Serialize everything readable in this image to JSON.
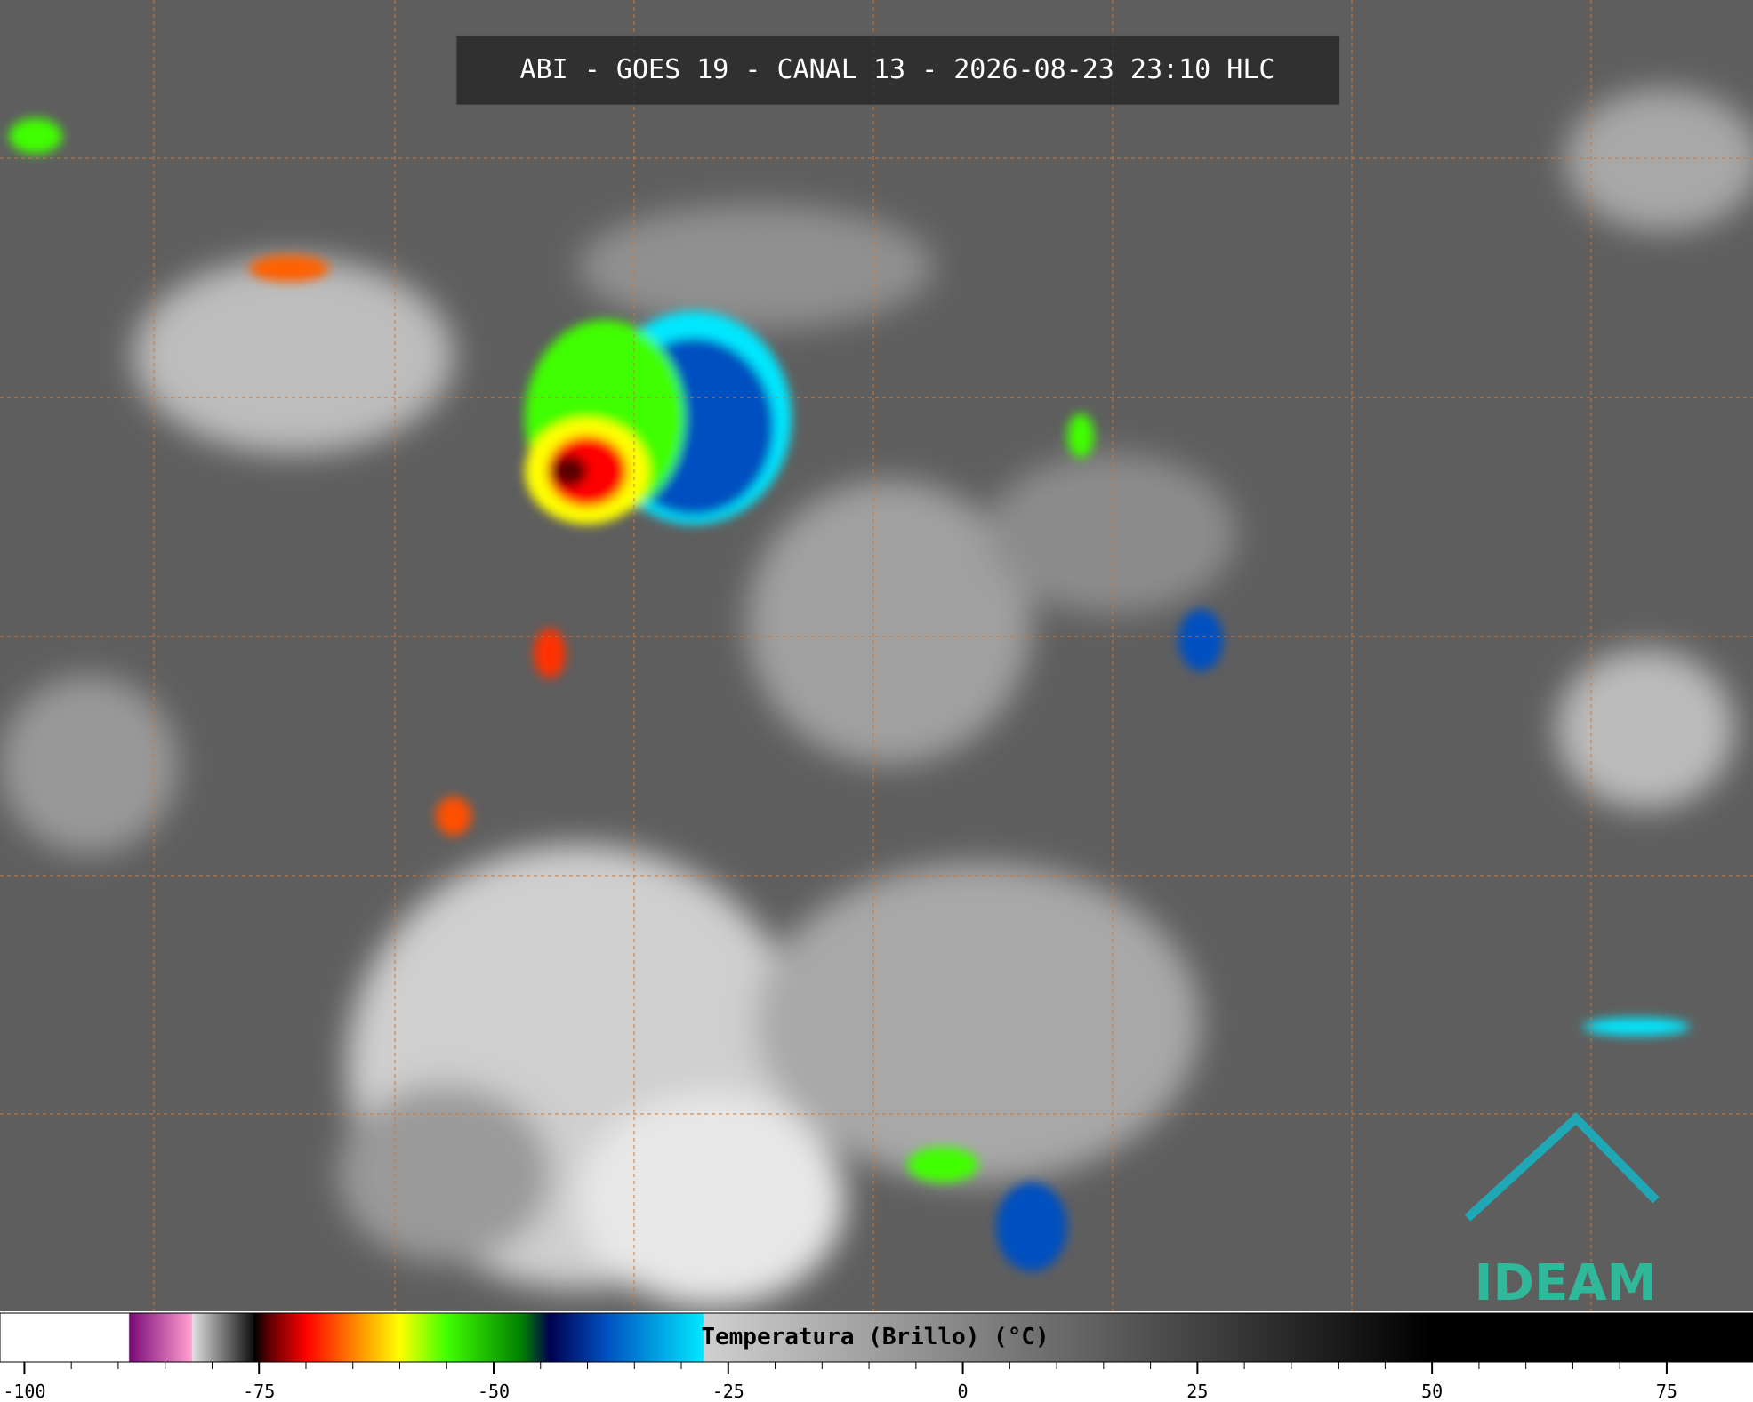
{
  "title": "ABI - GOES 19 - CANAL 13 - 2026-08-23 23:10 HLC",
  "logo": "IDEAM",
  "colorbar": {
    "label": "Temperatura (Brillo) (°C)",
    "lim": [
      -102.6,
      84.2
    ],
    "ticks": [
      -100,
      -75,
      -50,
      -25,
      0,
      25,
      50,
      75
    ],
    "stops": [
      {
        "value": -102.6,
        "color": "#ffffff"
      },
      {
        "value": -88.9,
        "color": "#ffffff"
      },
      {
        "value": -88.8,
        "color": "#7a0a7a"
      },
      {
        "value": -82.2,
        "color": "#ff9fd0"
      },
      {
        "value": -82.1,
        "color": "#e0e0e0"
      },
      {
        "value": -75.6,
        "color": "#101010"
      },
      {
        "value": -75.5,
        "color": "#000000"
      },
      {
        "value": -74,
        "color": "#5a0000"
      },
      {
        "value": -70,
        "color": "#ff0000"
      },
      {
        "value": -65,
        "color": "#ff8000"
      },
      {
        "value": -60,
        "color": "#ffff00"
      },
      {
        "value": -55,
        "color": "#40ff00"
      },
      {
        "value": -47,
        "color": "#008000"
      },
      {
        "value": -44,
        "color": "#000050"
      },
      {
        "value": -38,
        "color": "#0050c0"
      },
      {
        "value": -27.7,
        "color": "#00e8ff"
      },
      {
        "value": -27.6,
        "color": "#d0d0d0"
      },
      {
        "value": 49.8,
        "color": "#000000"
      },
      {
        "value": 84.2,
        "color": "#000000"
      }
    ]
  }
}
